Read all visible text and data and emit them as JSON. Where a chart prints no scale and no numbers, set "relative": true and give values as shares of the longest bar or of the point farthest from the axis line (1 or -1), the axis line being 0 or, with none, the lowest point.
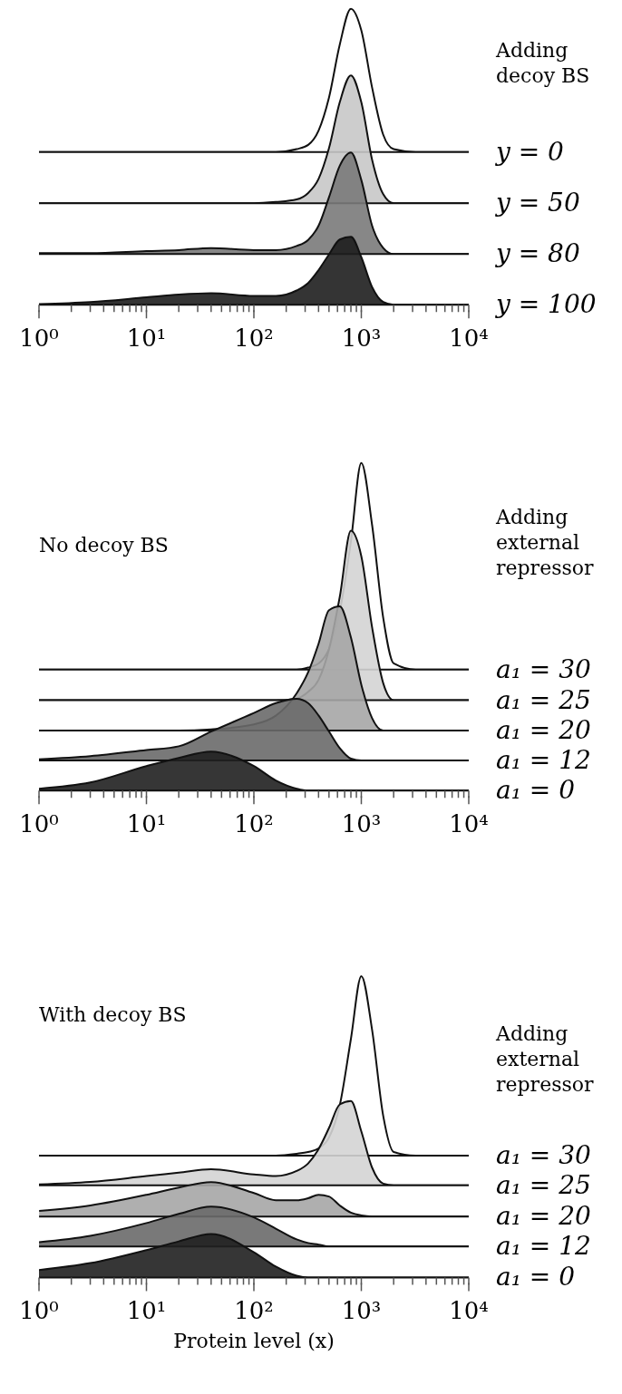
{
  "chart_data": [
    {
      "type": "area",
      "relative": true,
      "log": "x",
      "xlim": [
        1,
        10000
      ],
      "legend_title": "Adding decoy BS",
      "x": [
        1,
        3,
        10,
        20,
        40,
        100,
        160,
        250,
        320,
        400,
        500,
        630,
        800,
        1000,
        1260,
        1600,
        2000,
        3200,
        10000
      ],
      "series": [
        {
          "name": "y = 0",
          "color": "#ffffff",
          "values": [
            0,
            0,
            0,
            0,
            0,
            0,
            0,
            0.02,
            0.05,
            0.15,
            0.38,
            0.75,
            1,
            0.85,
            0.45,
            0.12,
            0.02,
            0,
            0
          ]
        }
      ]
    },
    {
      "type": "area",
      "relative": true,
      "log": "x",
      "xlim": [
        1,
        10000
      ],
      "x": [
        1,
        3,
        10,
        20,
        40,
        100,
        160,
        250,
        320,
        400,
        500,
        630,
        800,
        1000,
        1260,
        1600,
        2000,
        3200,
        10000
      ],
      "series": [
        {
          "name": "y = 50",
          "color": "#c8c8c8",
          "values": [
            0,
            0,
            0,
            0,
            0,
            0,
            0.01,
            0.03,
            0.08,
            0.19,
            0.43,
            0.79,
            1,
            0.79,
            0.34,
            0.07,
            0,
            0,
            0
          ]
        }
      ]
    },
    {
      "type": "area",
      "relative": true,
      "log": "x",
      "xlim": [
        1,
        10000
      ],
      "x": [
        1,
        3,
        10,
        20,
        40,
        100,
        160,
        250,
        320,
        400,
        500,
        630,
        800,
        1000,
        1260,
        1600,
        2000,
        3200,
        10000
      ],
      "series": [
        {
          "name": "y = 80",
          "color": "#7a7a7a",
          "values": [
            0.01,
            0.01,
            0.03,
            0.04,
            0.06,
            0.04,
            0.04,
            0.08,
            0.14,
            0.28,
            0.56,
            0.87,
            1,
            0.73,
            0.28,
            0.06,
            0,
            0,
            0
          ]
        }
      ]
    },
    {
      "type": "area",
      "relative": true,
      "log": "x",
      "xlim": [
        1,
        10000
      ],
      "x": [
        1,
        3,
        10,
        20,
        40,
        100,
        160,
        250,
        320,
        400,
        500,
        630,
        800,
        1000,
        1260,
        1600,
        2000,
        3200,
        10000
      ],
      "xticks": [
        {
          "value": 1,
          "label": "10⁰"
        },
        {
          "value": 2,
          "label": null
        },
        {
          "value": 3,
          "label": null
        },
        {
          "value": 4,
          "label": null
        },
        {
          "value": 5,
          "label": null
        },
        {
          "value": 6,
          "label": null
        },
        {
          "value": 7,
          "label": null
        },
        {
          "value": 8,
          "label": null
        },
        {
          "value": 9,
          "label": null
        },
        {
          "value": 10,
          "label": "10¹"
        },
        {
          "value": 20,
          "label": null
        },
        {
          "value": 30,
          "label": null
        },
        {
          "value": 40,
          "label": null
        },
        {
          "value": 50,
          "label": null
        },
        {
          "value": 60,
          "label": null
        },
        {
          "value": 70,
          "label": null
        },
        {
          "value": 80,
          "label": null
        },
        {
          "value": 90,
          "label": null
        },
        {
          "value": 100,
          "label": "10²"
        },
        {
          "value": 200,
          "label": null
        },
        {
          "value": 300,
          "label": null
        },
        {
          "value": 400,
          "label": null
        },
        {
          "value": 500,
          "label": null
        },
        {
          "value": 600,
          "label": null
        },
        {
          "value": 700,
          "label": null
        },
        {
          "value": 800,
          "label": null
        },
        {
          "value": 900,
          "label": null
        },
        {
          "value": 1000,
          "label": "10³"
        },
        {
          "value": 2000,
          "label": null
        },
        {
          "value": 3000,
          "label": null
        },
        {
          "value": 4000,
          "label": null
        },
        {
          "value": 5000,
          "label": null
        },
        {
          "value": 6000,
          "label": null
        },
        {
          "value": 7000,
          "label": null
        },
        {
          "value": 8000,
          "label": null
        },
        {
          "value": 9000,
          "label": null
        },
        {
          "value": 10000,
          "label": "10⁴"
        }
      ],
      "series": [
        {
          "name": "y = 100",
          "color": "#1e1e1e",
          "values": [
            0.01,
            0.04,
            0.11,
            0.15,
            0.17,
            0.13,
            0.13,
            0.21,
            0.32,
            0.51,
            0.74,
            0.96,
            1,
            0.7,
            0.26,
            0.04,
            0,
            0,
            0
          ]
        }
      ]
    },
    {
      "type": "area",
      "relative": true,
      "log": "x",
      "xlim": [
        1,
        10000
      ],
      "legend_title": "Adding external repressor",
      "annotations": [
        "No decoy BS"
      ],
      "x": [
        1,
        3,
        10,
        20,
        40,
        100,
        160,
        250,
        320,
        400,
        500,
        630,
        800,
        1000,
        1260,
        1600,
        2000,
        3200,
        10000
      ],
      "series": [
        {
          "name": "a₁ = 30",
          "color": "#ffffff",
          "values": [
            0,
            0,
            0,
            0,
            0,
            0,
            0,
            0,
            0.01,
            0.03,
            0.1,
            0.28,
            0.62,
            1,
            0.7,
            0.25,
            0.03,
            0,
            0
          ]
        }
      ]
    },
    {
      "type": "area",
      "relative": true,
      "log": "x",
      "xlim": [
        1,
        10000
      ],
      "x": [
        1,
        3,
        10,
        20,
        40,
        100,
        160,
        250,
        320,
        400,
        500,
        630,
        800,
        1000,
        1260,
        1600,
        2000,
        3200,
        10000
      ],
      "series": [
        {
          "name": "a₁ = 25",
          "color": "#d4d4d4",
          "values": [
            0,
            0,
            0,
            0,
            0,
            0,
            0,
            0.01,
            0.05,
            0.12,
            0.3,
            0.61,
            1,
            0.85,
            0.43,
            0.1,
            0,
            0,
            0
          ]
        }
      ]
    },
    {
      "type": "area",
      "relative": true,
      "log": "x",
      "xlim": [
        1,
        10000
      ],
      "x": [
        1,
        3,
        10,
        20,
        40,
        100,
        160,
        250,
        320,
        400,
        500,
        630,
        800,
        1000,
        1260,
        1600,
        2000,
        3200,
        10000
      ],
      "series": [
        {
          "name": "a₁ = 20",
          "color": "#a6a6a6",
          "values": [
            0,
            0,
            0,
            0,
            0.01,
            0.05,
            0.12,
            0.3,
            0.47,
            0.7,
            0.97,
            1,
            0.75,
            0.37,
            0.1,
            0,
            0,
            0,
            0
          ]
        }
      ]
    },
    {
      "type": "area",
      "relative": true,
      "log": "x",
      "xlim": [
        1,
        10000
      ],
      "x": [
        1,
        3,
        10,
        20,
        40,
        100,
        160,
        250,
        320,
        400,
        500,
        630,
        800,
        1000,
        1260,
        1600,
        2000,
        3200,
        10000
      ],
      "series": [
        {
          "name": "a₁ = 12",
          "color": "#6a6a6a",
          "values": [
            0.02,
            0.07,
            0.17,
            0.23,
            0.47,
            0.77,
            0.93,
            1,
            0.93,
            0.73,
            0.47,
            0.2,
            0.03,
            0,
            0,
            0,
            0,
            0,
            0
          ]
        }
      ]
    },
    {
      "type": "area",
      "relative": true,
      "log": "x",
      "xlim": [
        1,
        10000
      ],
      "x": [
        1,
        3,
        10,
        20,
        40,
        100,
        160,
        250,
        320,
        400,
        500,
        630,
        800,
        1000,
        1260,
        1600,
        2000,
        3200,
        10000
      ],
      "xticks": [
        {
          "value": 1,
          "label": "10⁰"
        },
        {
          "value": 2,
          "label": null
        },
        {
          "value": 3,
          "label": null
        },
        {
          "value": 4,
          "label": null
        },
        {
          "value": 5,
          "label": null
        },
        {
          "value": 6,
          "label": null
        },
        {
          "value": 7,
          "label": null
        },
        {
          "value": 8,
          "label": null
        },
        {
          "value": 9,
          "label": null
        },
        {
          "value": 10,
          "label": "10¹"
        },
        {
          "value": 20,
          "label": null
        },
        {
          "value": 30,
          "label": null
        },
        {
          "value": 40,
          "label": null
        },
        {
          "value": 50,
          "label": null
        },
        {
          "value": 60,
          "label": null
        },
        {
          "value": 70,
          "label": null
        },
        {
          "value": 80,
          "label": null
        },
        {
          "value": 90,
          "label": null
        },
        {
          "value": 100,
          "label": "10²"
        },
        {
          "value": 200,
          "label": null
        },
        {
          "value": 300,
          "label": null
        },
        {
          "value": 400,
          "label": null
        },
        {
          "value": 500,
          "label": null
        },
        {
          "value": 600,
          "label": null
        },
        {
          "value": 700,
          "label": null
        },
        {
          "value": 800,
          "label": null
        },
        {
          "value": 900,
          "label": null
        },
        {
          "value": 1000,
          "label": "10³"
        },
        {
          "value": 2000,
          "label": null
        },
        {
          "value": 3000,
          "label": null
        },
        {
          "value": 4000,
          "label": null
        },
        {
          "value": 5000,
          "label": null
        },
        {
          "value": 6000,
          "label": null
        },
        {
          "value": 7000,
          "label": null
        },
        {
          "value": 8000,
          "label": null
        },
        {
          "value": 9000,
          "label": null
        },
        {
          "value": 10000,
          "label": "10⁴"
        }
      ],
      "series": [
        {
          "name": "a₁ = 0",
          "color": "#202020",
          "values": [
            0.05,
            0.21,
            0.63,
            0.84,
            1,
            0.63,
            0.26,
            0.05,
            0,
            0,
            0,
            0,
            0,
            0,
            0,
            0,
            0,
            0,
            0
          ]
        }
      ]
    },
    {
      "type": "area",
      "relative": true,
      "log": "x",
      "xlim": [
        1,
        10000
      ],
      "legend_title": "Adding external repressor",
      "annotations": [
        "With decoy BS"
      ],
      "x": [
        1,
        3,
        10,
        20,
        40,
        100,
        160,
        250,
        320,
        400,
        500,
        630,
        800,
        1000,
        1260,
        1600,
        2000,
        3200,
        10000
      ],
      "series": [
        {
          "name": "a₁ = 30",
          "color": "#ffffff",
          "values": [
            0,
            0,
            0,
            0,
            0,
            0,
            0,
            0.01,
            0.02,
            0.04,
            0.1,
            0.28,
            0.65,
            1,
            0.7,
            0.22,
            0.02,
            0,
            0
          ]
        }
      ]
    },
    {
      "type": "area",
      "relative": true,
      "log": "x",
      "xlim": [
        1,
        10000
      ],
      "x": [
        1,
        3,
        10,
        20,
        40,
        100,
        160,
        250,
        320,
        400,
        500,
        630,
        800,
        1000,
        1260,
        1600,
        2000,
        3200,
        10000
      ],
      "series": [
        {
          "name": "a₁ = 25",
          "color": "#d4d4d4",
          "values": [
            0.01,
            0.04,
            0.11,
            0.15,
            0.19,
            0.13,
            0.11,
            0.17,
            0.26,
            0.43,
            0.68,
            0.96,
            1,
            0.64,
            0.21,
            0.02,
            0,
            0,
            0
          ]
        }
      ]
    },
    {
      "type": "area",
      "relative": true,
      "log": "x",
      "xlim": [
        1,
        10000
      ],
      "x": [
        1,
        3,
        10,
        20,
        40,
        100,
        160,
        250,
        320,
        400,
        500,
        630,
        800,
        1000,
        1260,
        1600,
        2000,
        3200,
        10000
      ],
      "series": [
        {
          "name": "a₁ = 20",
          "color": "#a6a6a6",
          "values": [
            0.16,
            0.32,
            0.63,
            0.84,
            1,
            0.68,
            0.47,
            0.47,
            0.53,
            0.63,
            0.58,
            0.32,
            0.11,
            0.03,
            0,
            0,
            0,
            0,
            0
          ]
        }
      ]
    },
    {
      "type": "area",
      "relative": true,
      "log": "x",
      "xlim": [
        1,
        10000
      ],
      "x": [
        1,
        3,
        10,
        20,
        40,
        100,
        160,
        250,
        320,
        400,
        500,
        630,
        800,
        1000,
        1260,
        1600,
        2000,
        3200,
        10000
      ],
      "series": [
        {
          "name": "a₁ = 12",
          "color": "#6a6a6a",
          "values": [
            0.11,
            0.27,
            0.59,
            0.82,
            1,
            0.73,
            0.45,
            0.18,
            0.09,
            0.05,
            0,
            0,
            0,
            0,
            0,
            0,
            0,
            0,
            0
          ]
        }
      ]
    },
    {
      "type": "area",
      "relative": true,
      "log": "x",
      "xlim": [
        1,
        10000
      ],
      "xlabel": "Protein level (x)",
      "x": [
        1,
        3,
        10,
        20,
        40,
        100,
        160,
        250,
        320,
        400,
        500,
        630,
        800,
        1000,
        1260,
        1600,
        2000,
        3200,
        10000
      ],
      "xticks": [
        {
          "value": 1,
          "label": "10⁰"
        },
        {
          "value": 2,
          "label": null
        },
        {
          "value": 3,
          "label": null
        },
        {
          "value": 4,
          "label": null
        },
        {
          "value": 5,
          "label": null
        },
        {
          "value": 6,
          "label": null
        },
        {
          "value": 7,
          "label": null
        },
        {
          "value": 8,
          "label": null
        },
        {
          "value": 9,
          "label": null
        },
        {
          "value": 10,
          "label": "10¹"
        },
        {
          "value": 20,
          "label": null
        },
        {
          "value": 30,
          "label": null
        },
        {
          "value": 40,
          "label": null
        },
        {
          "value": 50,
          "label": null
        },
        {
          "value": 60,
          "label": null
        },
        {
          "value": 70,
          "label": null
        },
        {
          "value": 80,
          "label": null
        },
        {
          "value": 90,
          "label": null
        },
        {
          "value": 100,
          "label": "10²"
        },
        {
          "value": 200,
          "label": null
        },
        {
          "value": 300,
          "label": null
        },
        {
          "value": 400,
          "label": null
        },
        {
          "value": 500,
          "label": null
        },
        {
          "value": 600,
          "label": null
        },
        {
          "value": 700,
          "label": null
        },
        {
          "value": 800,
          "label": null
        },
        {
          "value": 900,
          "label": null
        },
        {
          "value": 1000,
          "label": "10³"
        },
        {
          "value": 2000,
          "label": null
        },
        {
          "value": 3000,
          "label": null
        },
        {
          "value": 4000,
          "label": null
        },
        {
          "value": 5000,
          "label": null
        },
        {
          "value": 6000,
          "label": null
        },
        {
          "value": 7000,
          "label": null
        },
        {
          "value": 8000,
          "label": null
        },
        {
          "value": 9000,
          "label": null
        },
        {
          "value": 10000,
          "label": "10⁴"
        }
      ],
      "series": [
        {
          "name": "a₁ = 0",
          "color": "#202020",
          "values": [
            0.17,
            0.33,
            0.63,
            0.83,
            1,
            0.58,
            0.25,
            0.04,
            0,
            0,
            0,
            0,
            0,
            0,
            0,
            0,
            0,
            0,
            0
          ]
        }
      ]
    }
  ]
}
